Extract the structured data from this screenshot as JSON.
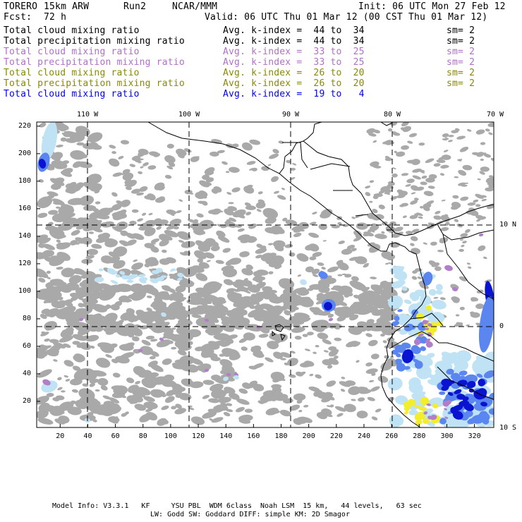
{
  "header": {
    "model": "TORERO",
    "config": "15km ARW",
    "run": "Run2",
    "org": "NCAR/MMM",
    "init": "Init: 06 UTC Mon 27 Feb 12",
    "fcst_label": "Fcst:",
    "fcst_value": "72 h",
    "valid": "Valid: 06 UTC Thu 01 Mar 12 (00 CST Thu 01 Mar 12)"
  },
  "fields": [
    {
      "name": "Total cloud mixing ratio",
      "stat": "Avg. k-index =  44 to  34",
      "sm": "sm= 2",
      "color": "#000000"
    },
    {
      "name": "Total precipitation mixing ratio",
      "stat": "Avg. k-index =  44 to  34",
      "sm": "sm= 2",
      "color": "#000000"
    },
    {
      "name": "Total cloud mixing ratio",
      "stat": "Avg. k-index =  33 to  25",
      "sm": "sm= 2",
      "color": "#b070c8"
    },
    {
      "name": "Total precipitation mixing ratio",
      "stat": "Avg. k-index =  33 to  25",
      "sm": "sm= 2",
      "color": "#b070c8"
    },
    {
      "name": "Total cloud mixing ratio",
      "stat": "Avg. k-index =  26 to  20",
      "sm": "sm= 2",
      "color": "#8a8a00"
    },
    {
      "name": "Total precipitation mixing ratio",
      "stat": "Avg. k-index =  26 to  20",
      "sm": "sm= 2",
      "color": "#8a8a00"
    },
    {
      "name": "Total cloud mixing ratio",
      "stat": "Avg. k-index =  19 to   4",
      "sm": "",
      "color": "#0000ff"
    }
  ],
  "map": {
    "lon_labels": [
      "110 W",
      "100 W",
      "90 W",
      "80 W",
      "70 W"
    ],
    "lat_labels": [
      "10 N",
      "0",
      "10 S"
    ],
    "x_ticks": [
      "20",
      "40",
      "60",
      "80",
      "100",
      "120",
      "140",
      "160",
      "180",
      "200",
      "220",
      "240",
      "260",
      "280",
      "300",
      "320"
    ],
    "y_ticks": [
      "220",
      "200",
      "180",
      "160",
      "140",
      "120",
      "100",
      "80",
      "60",
      "40",
      "20"
    ],
    "colors": {
      "gray": "#a9a9a9",
      "purple": "#b37ec8",
      "yellow": "#f2ee2a",
      "light_blue": "#bfe3f5",
      "mid_blue": "#5b86f0",
      "dark_blue": "#0a14d0"
    }
  },
  "footer": {
    "line1": "Model Info: V3.3.1   KF     YSU PBL  WDM 6class  Noah LSM  15 km,   44 levels,   63 sec",
    "line2": "LW: Godd SW: Goddard DIFF: simple KM: 2D Smagor"
  }
}
